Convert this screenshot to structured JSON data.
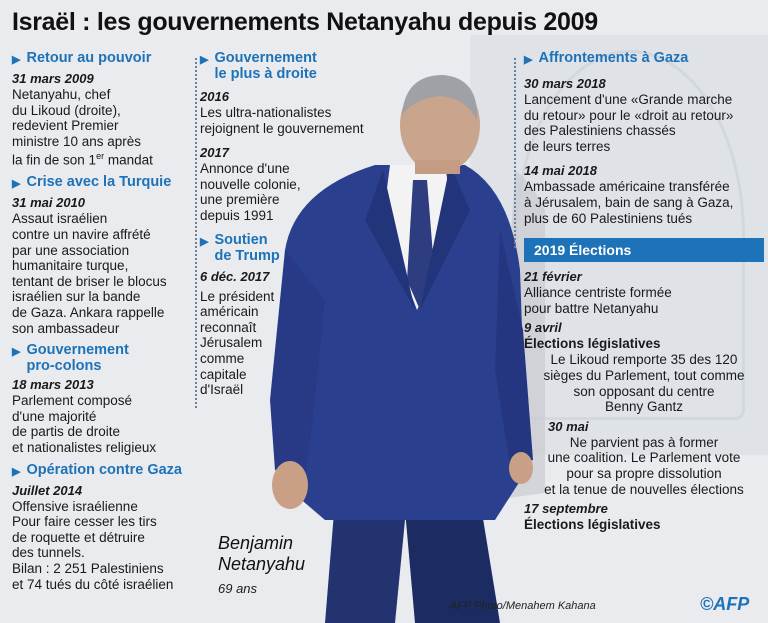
{
  "title": "Israël : les gouvernements Netanyahu depuis 2009",
  "col1": [
    {
      "heading": "Retour au pouvoir",
      "date": "31 mars 2009",
      "body": "Netanyahu, chef\ndu Likoud (droite),\nredevient Premier\nministre 10 ans après\nla fin de son 1er mandat"
    },
    {
      "heading": "Crise avec la Turquie",
      "date": "31 mai 2010",
      "body": "Assaut israélien\ncontre un navire affrété\npar une association\nhumanitaire turque,\ntentant de briser le blocus\nisraélien sur la bande\nde Gaza. Ankara rappelle\nson ambassadeur"
    },
    {
      "heading": "Gouvernement\npro-colons",
      "date": "18 mars 2013",
      "body": "Parlement composé\nd'une majorité\nde partis de droite\net nationalistes religieux"
    },
    {
      "heading": "Opération contre Gaza",
      "date": "Juillet 2014",
      "body": "Offensive israélienne\nPour faire cesser les tirs\nde roquette et détruire\ndes tunnels.\nBilan : 2 251 Palestiniens\net 74 tués du côté israélien"
    }
  ],
  "col2": [
    {
      "heading": "Gouvernement\nle plus à droite",
      "entries": [
        {
          "date": "2016",
          "body": "Les ultra-nationalistes\nrejoignent le gouvernement"
        },
        {
          "date": "2017",
          "body": "Annonce d'une\nnouvelle colonie,\nune première\ndepuis 1991"
        }
      ]
    },
    {
      "heading": "Soutien\nde Trump",
      "entries": [
        {
          "date": "6 déc. 2017",
          "body": "Le président\naméricain\nreconnaît\nJérusalem\ncomme\ncapitale\nd'Israël"
        }
      ]
    }
  ],
  "col3": {
    "heading": "Affrontements à Gaza",
    "entries": [
      {
        "date": "30 mars 2018",
        "body": "Lancement d'une «Grande marche\ndu retour» pour le «droit au retour»\ndes Palestiniens chassés\nde leurs terres"
      },
      {
        "date": "14 mai 2018",
        "body": "Ambassade américaine transférée\nà Jérusalem, bain de sang à Gaza,\nplus de 60 Palestiniens tués"
      }
    ],
    "band": "2019 Élections",
    "elections": {
      "d1": "21 février",
      "b1": "Alliance centriste formée\npour battre Netanyahu",
      "d2": "9 avril",
      "bold2": "Élections législatives",
      "b2": "Le Likoud remporte 35 des 120\nsièges du Parlement, tout comme\nson opposant du centre\nBenny Gantz",
      "d3": "30 mai",
      "b3": "Ne parvient pas à former\nune coalition. Le Parlement vote\npour sa propre dissolution\net la tenue de nouvelles élections",
      "d4": "17 septembre",
      "bold4": "Élections législatives"
    }
  },
  "caption": {
    "name": "Benjamin\nNetanyahu",
    "age": "69 ans"
  },
  "credit": "AFP Photo/Menahem Kahana",
  "logo": "©AFP",
  "colors": {
    "accent": "#1d72b8",
    "suit": "#2b3f8f"
  }
}
